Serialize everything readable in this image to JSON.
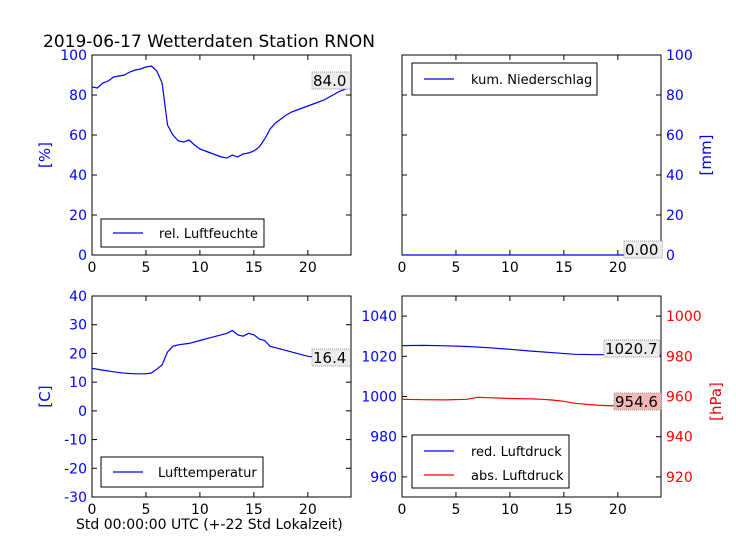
{
  "figure": {
    "title": "2019-06-17 Wetterdaten Station RNON",
    "x_caption": "Std 00:00:00 UTC (+-22 Std Lokalzeit)"
  },
  "colors": {
    "blue": "#0000ff",
    "red": "#ff0000",
    "black": "#000000",
    "badge_red": "#f4b8b8"
  },
  "chart_data": [
    {
      "id": "humidity",
      "type": "line",
      "xlim": [
        0,
        24
      ],
      "ylim": [
        0,
        100
      ],
      "xticks": [
        0,
        5,
        10,
        15,
        20
      ],
      "yticks": [
        0,
        20,
        40,
        60,
        80,
        100
      ],
      "ylabel": "[%]",
      "axis_side": "left",
      "axis_color": "#0000ff",
      "legend": {
        "position": "bottom-left",
        "entries": [
          "rel. Luftfeuchte"
        ]
      },
      "series": [
        {
          "name": "rel. Luftfeuchte",
          "color": "#0000ff",
          "x": [
            0,
            0.5,
            1,
            1.5,
            2,
            2.5,
            3,
            3.5,
            4,
            4.5,
            5,
            5.5,
            6,
            6.5,
            7,
            7.5,
            8,
            8.5,
            9,
            9.5,
            10,
            10.5,
            11,
            11.5,
            12,
            12.5,
            13,
            13.5,
            14,
            14.5,
            15,
            15.5,
            16,
            16.5,
            17,
            17.5,
            18,
            18.5,
            19,
            19.5,
            20,
            20.5,
            21,
            21.5,
            22,
            22.5,
            23,
            23.5,
            24
          ],
          "values": [
            84,
            83.5,
            86,
            87,
            89,
            89.5,
            90,
            91.5,
            92.5,
            93,
            94,
            94.5,
            92,
            86,
            65,
            60,
            57,
            56.5,
            57.5,
            55,
            53,
            52,
            51,
            50,
            49,
            48.5,
            50,
            49,
            50.5,
            51,
            52,
            54,
            58,
            63,
            66,
            68,
            70,
            71.5,
            72.5,
            73.5,
            74.5,
            75.5,
            76.5,
            77.5,
            79,
            80.5,
            82,
            83,
            84
          ]
        }
      ],
      "last_value_label": "84.0"
    },
    {
      "id": "precipitation",
      "type": "line",
      "xlim": [
        0,
        24
      ],
      "ylim": [
        0,
        100
      ],
      "xticks": [
        0,
        5,
        10,
        15,
        20
      ],
      "yticks": [
        0,
        20,
        40,
        60,
        80,
        100
      ],
      "ylabel": "[mm]",
      "axis_side": "right",
      "axis_color": "#0000ff",
      "legend": {
        "position": "top-left",
        "entries": [
          "kum. Niederschlag"
        ]
      },
      "series": [
        {
          "name": "kum. Niederschlag",
          "color": "#0000ff",
          "x": [
            0,
            24
          ],
          "values": [
            0,
            0
          ]
        }
      ],
      "last_value_label": "0.00"
    },
    {
      "id": "temperature",
      "type": "line",
      "xlim": [
        0,
        24
      ],
      "ylim": [
        -30,
        40
      ],
      "xticks": [
        0,
        5,
        10,
        15,
        20
      ],
      "yticks": [
        -30,
        -20,
        -10,
        0,
        10,
        20,
        30,
        40
      ],
      "ylabel": "[C]",
      "axis_side": "left",
      "axis_color": "#0000ff",
      "legend": {
        "position": "bottom-left",
        "entries": [
          "Lufttemperatur"
        ]
      },
      "series": [
        {
          "name": "Lufttemperatur",
          "color": "#0000ff",
          "x": [
            0,
            1,
            2,
            3,
            4,
            5,
            5.5,
            6,
            6.5,
            7,
            7.5,
            8,
            9,
            10,
            11,
            12,
            12.5,
            13,
            13.5,
            14,
            14.5,
            15,
            15.5,
            16,
            16.5,
            17,
            18,
            19,
            20,
            21,
            22,
            23,
            24
          ],
          "values": [
            14.8,
            14.2,
            13.6,
            13.1,
            12.9,
            12.9,
            13.2,
            14.5,
            16,
            20.5,
            22.5,
            23,
            23.5,
            24.5,
            25.5,
            26.5,
            27,
            28,
            26.5,
            26,
            27,
            26.5,
            25,
            24.5,
            22.5,
            22,
            21,
            20,
            19,
            18.5,
            17.8,
            17,
            16.4
          ]
        }
      ],
      "last_value_label": "16.4"
    },
    {
      "id": "pressure",
      "type": "line",
      "xlim": [
        0,
        24
      ],
      "ylim": [
        950,
        1050
      ],
      "ylim_right": [
        910,
        1010
      ],
      "xticks": [
        0,
        5,
        10,
        15,
        20
      ],
      "yticks": [
        960,
        980,
        1000,
        1020,
        1040
      ],
      "yticks_right": [
        920,
        940,
        960,
        980,
        1000
      ],
      "ylabel_right": "[hPa]",
      "axis_color": "#0000ff",
      "axis_color_right": "#ff0000",
      "legend": {
        "position": "bottom-left",
        "entries": [
          "red. Luftdruck",
          "abs. Luftdruck"
        ]
      },
      "series": [
        {
          "name": "red. Luftdruck",
          "color": "#0000ff",
          "axis": "left",
          "x": [
            0,
            2,
            4,
            6,
            8,
            10,
            12,
            14,
            16,
            18,
            20,
            22,
            24
          ],
          "values": [
            1025.3,
            1025.4,
            1025.2,
            1024.9,
            1024.3,
            1023.5,
            1022.6,
            1021.8,
            1021.0,
            1020.8,
            1020.9,
            1020.8,
            1020.7
          ]
        },
        {
          "name": "abs. Luftdruck",
          "color": "#ff0000",
          "axis": "right",
          "x": [
            0,
            2,
            4,
            6,
            7,
            8,
            10,
            12,
            13,
            14,
            15,
            16,
            18,
            20,
            22,
            24
          ],
          "values": [
            958.6,
            958.4,
            958.3,
            958.6,
            959.6,
            959.4,
            959.0,
            958.8,
            958.6,
            958.2,
            957.6,
            956.6,
            955.7,
            955.2,
            954.9,
            954.6
          ]
        }
      ],
      "last_value_labels": [
        "1020.7",
        "954.6"
      ]
    }
  ]
}
